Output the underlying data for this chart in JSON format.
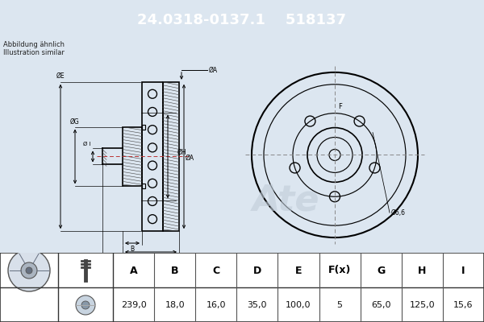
{
  "part_number": "24.0318-0137.1",
  "catalog_number": "518137",
  "note_line1": "Abbildung ähnlich",
  "note_line2": "Illustration similar",
  "bg_color": "#dce6f0",
  "header_bg": "#0000cc",
  "header_text_color": "#ffffff",
  "table_headers": [
    "A",
    "B",
    "C",
    "D",
    "E",
    "F(x)",
    "G",
    "H",
    "I"
  ],
  "table_values": [
    "239,0",
    "18,0",
    "16,0",
    "35,0",
    "100,0",
    "5",
    "65,0",
    "125,0",
    "15,6"
  ],
  "lw_main": 1.2,
  "lw_dim": 0.7,
  "lw_hatch": 0.4,
  "line_color": "#000000",
  "dim_color": "#000000",
  "hatch_color": "#444444",
  "crosshair_color": "#888888",
  "table_bg": "#ffffff",
  "watermark_color": "#c0ccd8"
}
